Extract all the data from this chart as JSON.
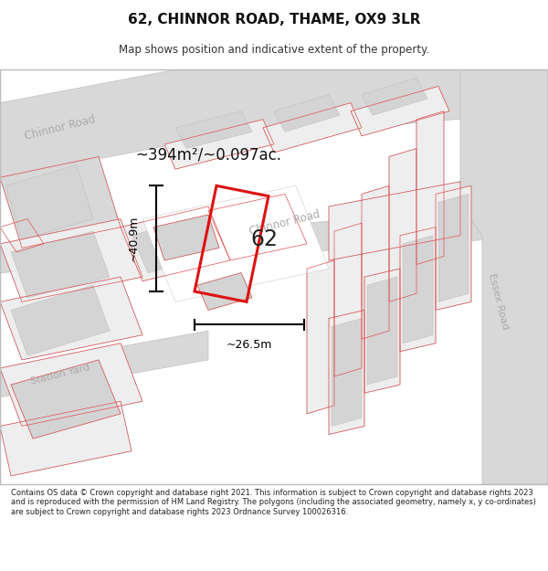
{
  "title": "62, CHINNOR ROAD, THAME, OX9 3LR",
  "subtitle": "Map shows position and indicative extent of the property.",
  "area_label": "~394m²/~0.097ac.",
  "width_label": "~26.5m",
  "height_label": "~40.9m",
  "number_label": "62",
  "footer": "Contains OS data © Crown copyright and database right 2021. This information is subject to Crown copyright and database rights 2023 and is reproduced with the permission of HM Land Registry. The polygons (including the associated geometry, namely x, y co-ordinates) are subject to Crown copyright and database rights 2023 Ordnance Survey 100026316.",
  "map_bg": "#f8f8f8",
  "road_gray": "#d8d8d8",
  "road_edge": "#c0c0c0",
  "building_gray": "#d4d4d4",
  "parcel_red": "#e8a0a0",
  "parcel_line": "#e05050",
  "plot_red": "#dd1111",
  "dim_color": "#111111",
  "road_label_color": "#aaaaaa",
  "title_color": "#111111",
  "subtitle_color": "#333333",
  "footer_color": "#222222"
}
